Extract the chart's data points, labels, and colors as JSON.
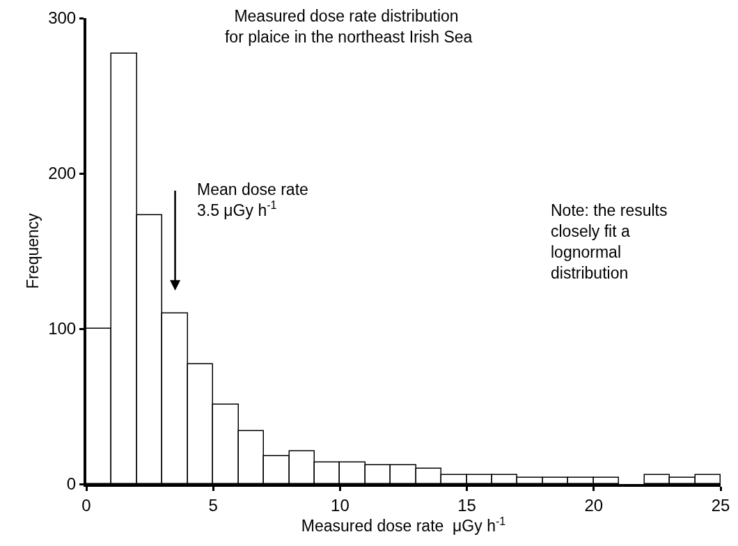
{
  "chart_data": {
    "type": "histogram",
    "title": "Measured dose rate distribution\n for plaice in the northeast Irish Sea",
    "xlabel": "Measured dose rate  μGy h$^{-1}$",
    "ylabel": "Frequency",
    "bins": [
      0,
      1,
      2,
      3,
      4,
      5,
      6,
      7,
      8,
      9,
      10,
      11,
      12,
      13,
      14,
      15,
      16,
      17,
      18,
      19,
      20,
      21,
      22,
      23,
      24,
      25
    ],
    "values": [
      100,
      277,
      173,
      110,
      77,
      51,
      34,
      18,
      21,
      14,
      14,
      12,
      12,
      10,
      6,
      6,
      6,
      4,
      4,
      4,
      4,
      0,
      6,
      4,
      6
    ],
    "color": "#ffffff",
    "xlim": [
      0,
      25
    ],
    "xticks": [
      0,
      5,
      10,
      15,
      20,
      25
    ],
    "ylim": [
      0,
      300
    ],
    "yticks": [
      0,
      100,
      200,
      300
    ],
    "grid": false,
    "legend": false,
    "annotations": [
      "Mean dose rate\n3.5 μGy h$^{-1}$",
      "Note: the results\nclosely fit a\nlognormal\ndistribution"
    ]
  }
}
